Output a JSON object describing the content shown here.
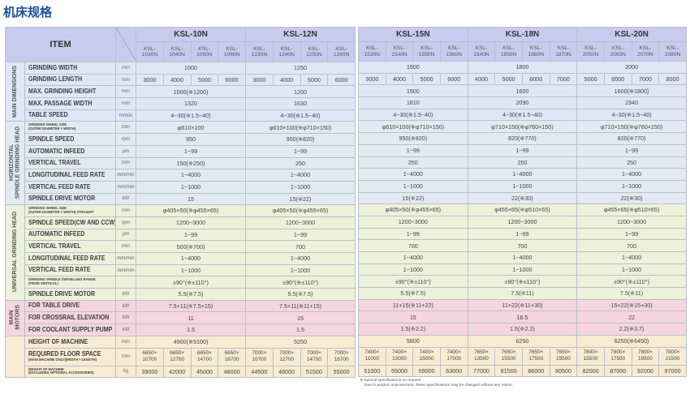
{
  "title": "机床规格",
  "header": {
    "item": "ITEM",
    "models": [
      {
        "name": "KSL-10N",
        "variants": [
          [
            "KSL-",
            "1030N"
          ],
          [
            "KSL-",
            "1040N"
          ],
          [
            "KSL-",
            "1050N"
          ],
          [
            "KSL-",
            "1060N"
          ]
        ]
      },
      {
        "name": "KSL-12N",
        "variants": [
          [
            "KSL-",
            "1230N"
          ],
          [
            "KSL-",
            "1240N"
          ],
          [
            "KSL-",
            "1250N"
          ],
          [
            "KSL-",
            "1260N"
          ]
        ]
      },
      {
        "name": "KSL-15N",
        "variants": [
          [
            "KSL-",
            "1530N"
          ],
          [
            "KSL-",
            "1540N"
          ],
          [
            "KSL-",
            "1550N"
          ],
          [
            "KSL-",
            "1560N"
          ]
        ]
      },
      {
        "name": "KSL-18N",
        "variants": [
          [
            "KSL-",
            "1840N"
          ],
          [
            "KSL-",
            "1850N"
          ],
          [
            "KSL-",
            "1860N"
          ],
          [
            "KSL-",
            "1870N"
          ]
        ]
      },
      {
        "name": "KSL-20N",
        "variants": [
          [
            "KSL-",
            "2050N"
          ],
          [
            "KSL-",
            "2060N"
          ],
          [
            "KSL-",
            "2070N"
          ],
          [
            "KSL-",
            "2080N"
          ]
        ]
      }
    ]
  },
  "colors": {
    "header": "#c8cbee",
    "main_dimensions": "#dfe7f7",
    "horizontal_head": "#e2eaf1",
    "universal_head": "#eef1da",
    "main_motors": "#f5d6de",
    "machine": "#f7ebd1",
    "title": "#1a4f9c"
  },
  "groups": [
    {
      "key": "main_dimensions",
      "label": [
        "MAIN DIMENSIONS"
      ],
      "rows": [
        {
          "item": "GRINDING WIDTH",
          "unit": "mm",
          "values": [
            "1000",
            "1250",
            "1500",
            "1800",
            "2000"
          ]
        },
        {
          "item": "GRINDING LENGTH",
          "unit": "mm",
          "values": [
            [
              "3000",
              "4000",
              "5000",
              "6000"
            ],
            [
              "3000",
              "4000",
              "5000",
              "6000"
            ],
            [
              "3000",
              "4000",
              "5000",
              "6000"
            ],
            [
              "4000",
              "5000",
              "6000",
              "7000"
            ],
            [
              "5000",
              "6000",
              "7000",
              "8000"
            ]
          ]
        },
        {
          "item": "MAX. GRINDING HEIGHT",
          "unit": "mm",
          "values": [
            "1000(※1200)",
            "1200",
            "1500",
            "1600",
            "1600(※1800)"
          ]
        },
        {
          "item": "MAX. PASSAGE WIDTH",
          "unit": "mm",
          "values": [
            "1320",
            "1630",
            "1810",
            "2090",
            "2340"
          ]
        },
        {
          "item": "TABLE SPEED",
          "unit": "m/min",
          "values": [
            "4~30(※1.5~40)",
            "4~30(※1.5~40)",
            "4~30(※1.5~40)",
            "4~30(※1.5~40)",
            "4~30(※1.5~40)"
          ]
        }
      ]
    },
    {
      "key": "horizontal_head",
      "label": [
        "HORIZONTAL",
        "SPINDLE GRINDING HEAD"
      ],
      "rows": [
        {
          "item": "GRINDING WHEEL SIZE",
          "sub": "(OUTER DIAMETER × WIDTH)",
          "small": true,
          "unit": "mm",
          "values": [
            "φ610×100",
            "φ610×100(※φ710×150)",
            "φ610×100(※φ710×150)",
            "φ710×150(※φ760×150)",
            "φ710×150(※φ760×150)"
          ]
        },
        {
          "item": "SPINDLE SPEED",
          "unit": "rpm",
          "values": [
            "950",
            "950(※820)",
            "950(※820)",
            "820(※770)",
            "820(※770)"
          ]
        },
        {
          "item": "AUTOMATIC INFEED",
          "unit": "μm",
          "values": [
            "1~99",
            "1~99",
            "1~99",
            "1~99",
            "1~99"
          ]
        },
        {
          "item": "VERTICAL TRAVEL",
          "unit": "mm",
          "values": [
            "150(※250)",
            "250",
            "250",
            "250",
            "250"
          ]
        },
        {
          "item": "LONGITUDINAL FEED RATE",
          "unit": "mm/min",
          "values": [
            "1~4000",
            "1~4000",
            "1~4000",
            "1~4000",
            "1~4000"
          ]
        },
        {
          "item": "VERTICAL FEED RATE",
          "unit": "mm/min",
          "values": [
            "1~1000",
            "1~1000",
            "1~1000",
            "1~1000",
            "1~1000"
          ]
        },
        {
          "item": "SPINDLE DRIVE MOTOR",
          "unit": "kW",
          "values": [
            "15",
            "15(※22)",
            "15(※22)",
            "22(※30)",
            "22(※30)"
          ]
        }
      ]
    },
    {
      "key": "universal_head",
      "label": [
        "UNIVERSAL GRINDING HEAD"
      ],
      "rows": [
        {
          "item": "GRINDING WHEEL SIZE",
          "sub": "(OUTER DIAMETER × WIDTH) STRAIGHT",
          "small": true,
          "unit": "mm",
          "values": [
            "φ405×50(※φ455×65)",
            "φ405×50(※φ455×65)",
            "φ405×50(※φ455×65)",
            "φ455×65(※φ510×65)",
            "φ455×65(※φ510×65)"
          ]
        },
        {
          "item": "SPINDLE SPEED(CW AND CCW)",
          "unit": "rpm",
          "values": [
            "1200~3000",
            "1200~3000",
            "1200~3000",
            "1200~3000",
            "1200~3000"
          ]
        },
        {
          "item": "AUTOMATIC INFEED",
          "unit": "μm",
          "values": [
            "1~99",
            "1~99",
            "1~99",
            "1~99",
            "1~99"
          ]
        },
        {
          "item": "VERTICAL TRAVEL",
          "unit": "mm",
          "values": [
            "500(※700)",
            "700",
            "700",
            "700",
            "700"
          ]
        },
        {
          "item": "LONGITUDINAL FEED RATE",
          "unit": "mm/min",
          "values": [
            "1~4000",
            "1~4000",
            "1~4000",
            "1~4000",
            "1~4000"
          ]
        },
        {
          "item": "VERTICAL FEED RATE",
          "unit": "mm/min",
          "values": [
            "1~1000",
            "1~1000",
            "1~1000",
            "1~1000",
            "1~1000"
          ]
        },
        {
          "item": "GRINDING SPINDLE SWIVELLING RANGE",
          "sub": "(FROM VERTICAL)",
          "small": true,
          "unit": "",
          "values": [
            "±90°(※±110°)",
            "±90°(※±110°)",
            "±90°(※±110°)",
            "±90°(※±110°)",
            "±90°(※±110°)"
          ]
        },
        {
          "item": "SPINDLE DRIVE MOTOR",
          "unit": "kW",
          "values": [
            "5.5(※7.5)",
            "5.5(※7.5)",
            "5.5(※7.5)",
            "7.5(※11)",
            "7.5(※11)"
          ]
        }
      ]
    },
    {
      "key": "main_motors",
      "label": [
        "MAIN",
        "MOTORS"
      ],
      "rows": [
        {
          "item": "FOR TABLE DRIVE",
          "unit": "kW",
          "values": [
            "7.5+11(※7.5+15)",
            "7.5+11(※11+15)",
            "11+15(※11+22)",
            "11+22(※11+30)",
            "15+22(※15+30)"
          ]
        },
        {
          "item": "FOR CROSSRAIL ELEVATION",
          "unit": "kW",
          "values": [
            "11",
            "15",
            "15",
            "18.5",
            "22"
          ]
        },
        {
          "item": "FOR COOLANT SUPPLY PUMP",
          "unit": "kW",
          "values": [
            "1.5",
            "1.5",
            "1.5(※2.2)",
            "1.5(※2.2)",
            "2.2(※3.7)"
          ]
        }
      ]
    },
    {
      "key": "machine",
      "label": [],
      "rows": [
        {
          "item": "HEIGHT OF MACHINE",
          "unit": "mm",
          "values": [
            "4900(※5100)",
            "5250",
            "5800",
            "6250",
            "6250(※6450)"
          ]
        },
        {
          "item": "REQUIRED FLOOR SPACE",
          "sub": "(MAIN MACHINE ONLY)(WIDTH × LENGTH)",
          "tall": true,
          "unit": "mm",
          "values": [
            [
              [
                "6650×",
                "10700"
              ],
              [
                "6650×",
                "12700"
              ],
              [
                "6650×",
                "14700"
              ],
              [
                "6650×",
                "16700"
              ]
            ],
            [
              [
                "7000×",
                "10700"
              ],
              [
                "7000×",
                "12700"
              ],
              [
                "7000×",
                "14700"
              ],
              [
                "7000×",
                "16700"
              ]
            ],
            [
              [
                "7400×",
                "11000"
              ],
              [
                "7400×",
                "13000"
              ],
              [
                "7400×",
                "15000"
              ],
              [
                "7400×",
                "17000"
              ]
            ],
            [
              [
                "7650×",
                "13500"
              ],
              [
                "7650×",
                "15500"
              ],
              [
                "7650×",
                "17500"
              ],
              [
                "7650×",
                "19500"
              ]
            ],
            [
              [
                "7800×",
                "15500"
              ],
              [
                "7800×",
                "17500"
              ],
              [
                "7800×",
                "19500"
              ],
              [
                "7800×",
                "21500"
              ]
            ]
          ]
        },
        {
          "item": "WEIGHT OF MACHINE",
          "sub": "(EXCLUDING OPTIONAL ACCESSORIES)",
          "small": true,
          "unit": "kg",
          "values": [
            [
              "39000",
              "42000",
              "45000",
              "48000"
            ],
            [
              "44500",
              "48000",
              "51500",
              "55000"
            ],
            [
              "51000",
              "55000",
              "59000",
              "63000"
            ],
            [
              "77000",
              "81500",
              "86000",
              "90500"
            ],
            [
              "82000",
              "87000",
              "92000",
              "97000"
            ]
          ]
        }
      ]
    }
  ],
  "footnote": [
    "※ Special specifications on request.",
    "Due to product improvement, these specifications may be changed without any notice."
  ]
}
